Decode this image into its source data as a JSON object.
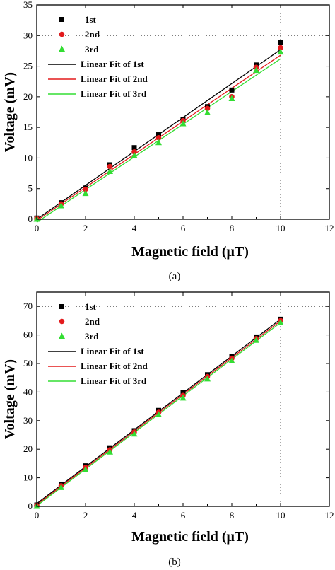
{
  "chart_data": [
    {
      "type": "scatter",
      "panel_label": "(a)",
      "xlabel": "Magnetic field (μT)",
      "ylabel": "Voltage (mV)",
      "xlim": [
        0,
        12
      ],
      "ylim": [
        0,
        35
      ],
      "xticks": [
        0,
        2,
        4,
        6,
        8,
        10,
        12
      ],
      "yticks": [
        0,
        5,
        10,
        15,
        20,
        25,
        30,
        35
      ],
      "reference_lines": {
        "vertical_at_x": 10,
        "horizontal_at_y": 30,
        "style": "dotted"
      },
      "legend_position": "top-left",
      "x": [
        0,
        1,
        2,
        3,
        4,
        5,
        6,
        7,
        8,
        9,
        10
      ],
      "series": [
        {
          "name": "1st",
          "marker": "square",
          "color": "#000000",
          "values": [
            0.2,
            2.7,
            5.1,
            8.9,
            11.7,
            13.8,
            16.3,
            18.4,
            21.1,
            25.2,
            28.9
          ]
        },
        {
          "name": "2nd",
          "marker": "circle",
          "color": "#e31a1c",
          "values": [
            0.1,
            2.5,
            4.9,
            8.6,
            11.0,
            13.3,
            16.1,
            18.1,
            20.0,
            24.8,
            28.0
          ]
        },
        {
          "name": "3rd",
          "marker": "triangle",
          "color": "#33dd33",
          "values": [
            0.0,
            2.2,
            4.2,
            7.8,
            10.4,
            12.5,
            15.6,
            17.4,
            19.7,
            24.3,
            27.3
          ]
        }
      ],
      "fits": [
        {
          "name": "Linear Fit of 1st",
          "color": "#000000",
          "x": [
            0,
            10
          ],
          "y": [
            0.0,
            27.7
          ]
        },
        {
          "name": "Linear Fit of 2nd",
          "color": "#e31a1c",
          "x": [
            0,
            10
          ],
          "y": [
            -0.2,
            26.8
          ]
        },
        {
          "name": "Linear Fit of 3rd",
          "color": "#33dd33",
          "x": [
            0,
            10
          ],
          "y": [
            -0.5,
            26.2
          ]
        }
      ]
    },
    {
      "type": "scatter",
      "panel_label": "(b)",
      "xlabel": "Magnetic field (μT)",
      "ylabel": "Voltage (mV)",
      "xlim": [
        0,
        12
      ],
      "ylim": [
        0,
        75
      ],
      "xticks": [
        0,
        2,
        4,
        6,
        8,
        10,
        12
      ],
      "yticks": [
        0,
        10,
        20,
        30,
        40,
        50,
        60,
        70
      ],
      "reference_lines": {
        "vertical_at_x": 10,
        "horizontal_at_y": 70,
        "style": "dotted"
      },
      "legend_position": "top-left",
      "x": [
        0,
        1,
        2,
        3,
        4,
        5,
        6,
        7,
        8,
        9,
        10
      ],
      "series": [
        {
          "name": "1st",
          "marker": "square",
          "color": "#000000",
          "values": [
            0.5,
            7.8,
            14.2,
            20.5,
            26.5,
            33.6,
            39.8,
            46.1,
            52.5,
            59.3,
            65.5
          ]
        },
        {
          "name": "2nd",
          "marker": "circle",
          "color": "#e31a1c",
          "values": [
            0.3,
            7.2,
            13.6,
            19.8,
            26.0,
            32.9,
            38.8,
            45.4,
            51.8,
            58.7,
            65.0
          ]
        },
        {
          "name": "3rd",
          "marker": "triangle",
          "color": "#33dd33",
          "values": [
            0.0,
            6.6,
            12.8,
            19.0,
            25.3,
            32.1,
            37.9,
            44.6,
            50.9,
            58.1,
            64.3
          ]
        }
      ],
      "fits": [
        {
          "name": "Linear Fit of 1st",
          "color": "#000000",
          "x": [
            0,
            10
          ],
          "y": [
            1.0,
            65.5
          ]
        },
        {
          "name": "Linear Fit of 2nd",
          "color": "#e31a1c",
          "x": [
            0,
            10
          ],
          "y": [
            0.6,
            64.9
          ]
        },
        {
          "name": "Linear Fit of 3rd",
          "color": "#33dd33",
          "x": [
            0,
            10
          ],
          "y": [
            0.2,
            64.3
          ]
        }
      ]
    }
  ]
}
